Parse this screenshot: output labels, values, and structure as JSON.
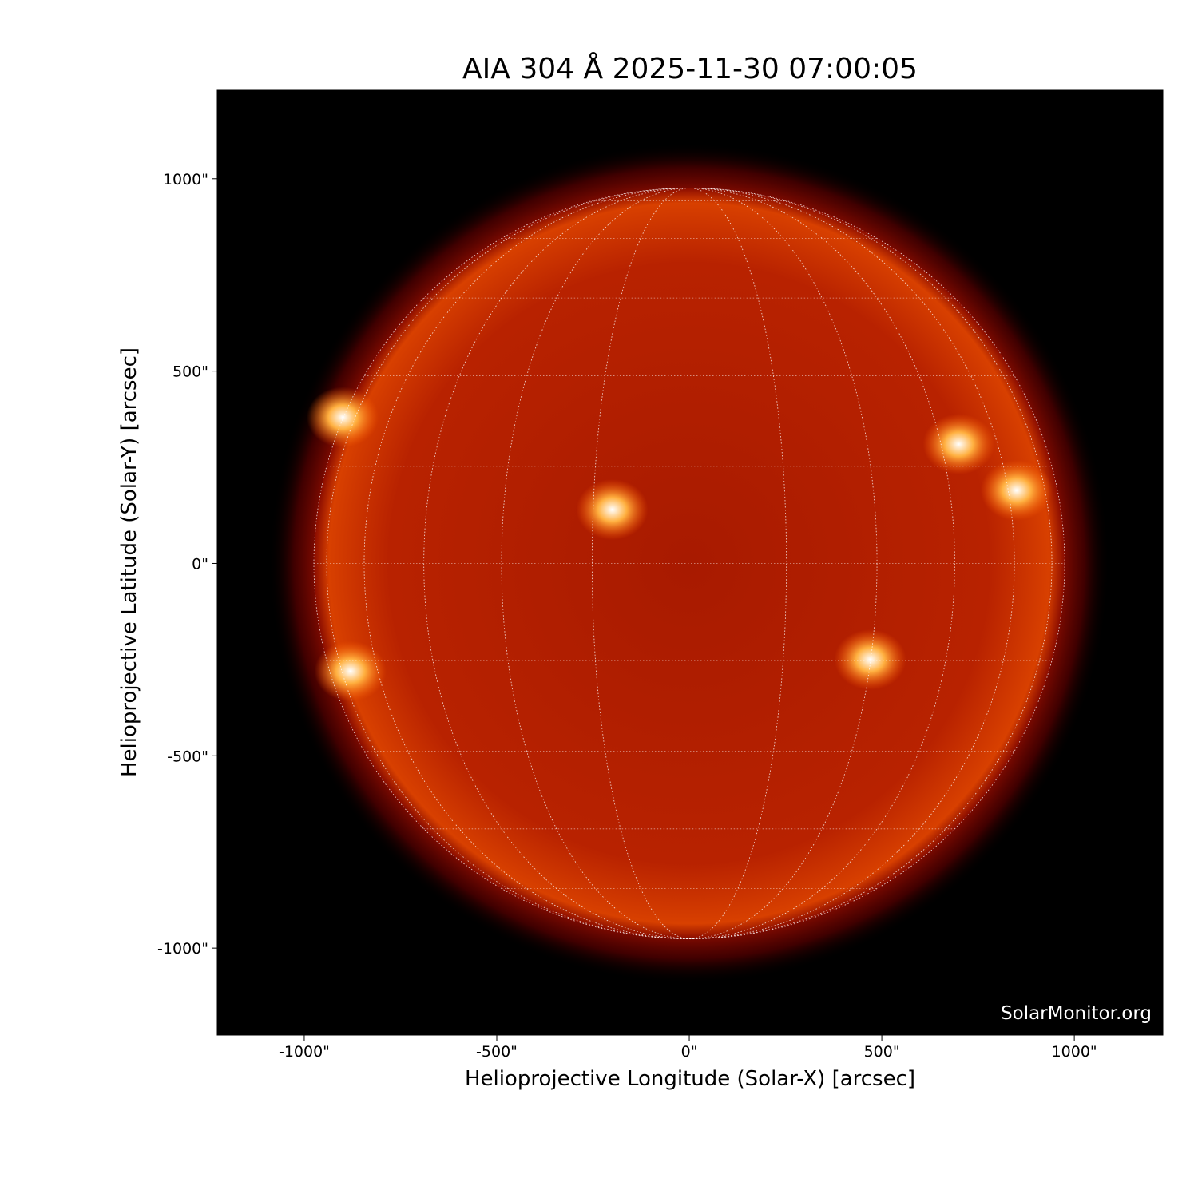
{
  "chart_data": {
    "type": "image",
    "title": "AIA 304 Å 2025-11-30 07:00:05",
    "xlabel": "Helioprojective Longitude (Solar-X) [arcsec]",
    "ylabel": "Helioprojective Latitude (Solar-Y) [arcsec]",
    "xlim": [
      -1226,
      1230
    ],
    "ylim": [
      -1226,
      1230
    ],
    "x_ticks": [
      -1000,
      -500,
      0,
      500,
      1000
    ],
    "y_ticks": [
      -1000,
      -500,
      0,
      500,
      1000
    ],
    "x_tick_labels": [
      "-1000\"",
      "-500\"",
      "0\"",
      "500\"",
      "1000\""
    ],
    "y_tick_labels": [
      "-1000\"",
      "-500\"",
      "0\"",
      "500\"",
      "1000\""
    ],
    "solar_radius_arcsec": 975,
    "grid": {
      "type": "heliographic",
      "spacing_deg": 15,
      "style": "dotted",
      "color": "#ffffff"
    },
    "colormap": [
      "#000000",
      "#6e0000",
      "#c02800",
      "#ff8a10",
      "#ffffff"
    ],
    "bright_regions": [
      {
        "x": 700,
        "y": 310
      },
      {
        "x": 470,
        "y": -250
      },
      {
        "x": -880,
        "y": -280
      },
      {
        "x": -200,
        "y": 140
      },
      {
        "x": -900,
        "y": 380
      },
      {
        "x": 850,
        "y": 190
      }
    ]
  },
  "watermark": "SolarMonitor.org"
}
